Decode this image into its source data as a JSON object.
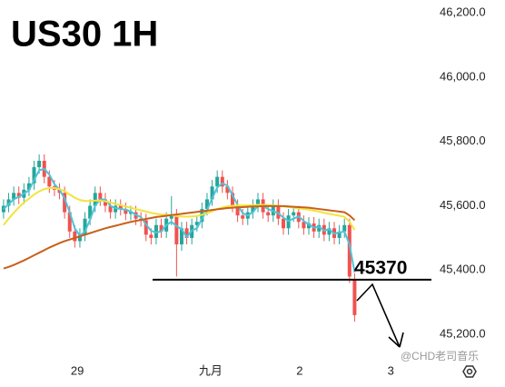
{
  "chart_data": {
    "type": "candlestick",
    "title": "US30 1H",
    "x": [
      0,
      1,
      2,
      3,
      4,
      5,
      6,
      7,
      8,
      9,
      10,
      11,
      12,
      13,
      14,
      15,
      16,
      17,
      18,
      19,
      20,
      21,
      22,
      23,
      24,
      25,
      26,
      27,
      28,
      29,
      30,
      31,
      32,
      33,
      34,
      35,
      36,
      37,
      38,
      39,
      40,
      41,
      42,
      43,
      44,
      45,
      46,
      47,
      48,
      49,
      50,
      51,
      52,
      53,
      54,
      55,
      56,
      57,
      58,
      59,
      60,
      61,
      62,
      63,
      64,
      65,
      66,
      67,
      68,
      69
    ],
    "open": [
      45580,
      45600,
      45620,
      45640,
      45625,
      45650,
      45670,
      45720,
      45740,
      45690,
      45660,
      45650,
      45640,
      45580,
      45520,
      45490,
      45510,
      45560,
      45600,
      45640,
      45620,
      45600,
      45580,
      45600,
      45590,
      45575,
      45580,
      45560,
      45555,
      45510,
      45500,
      45540,
      45520,
      45560,
      45570,
      45480,
      45530,
      45500,
      45540,
      45550,
      45590,
      45620,
      45660,
      45690,
      45660,
      45640,
      45600,
      45570,
      45560,
      45580,
      45600,
      45620,
      45580,
      45570,
      45600,
      45560,
      45530,
      45570,
      45580,
      45550,
      45530,
      45545,
      45520,
      45540,
      45510,
      45530,
      45500,
      45520,
      45540,
      45370
    ],
    "high": [
      45620,
      45640,
      45660,
      45660,
      45670,
      45690,
      45740,
      45760,
      45760,
      45710,
      45680,
      45670,
      45660,
      45600,
      45540,
      45530,
      45580,
      45620,
      45660,
      45660,
      45640,
      45620,
      45620,
      45620,
      45610,
      45600,
      45600,
      45580,
      45575,
      45530,
      45560,
      45560,
      45580,
      45630,
      45590,
      45550,
      45550,
      45560,
      45570,
      45610,
      45640,
      45680,
      45710,
      45710,
      45680,
      45660,
      45620,
      45590,
      45600,
      45620,
      45640,
      45640,
      45600,
      45620,
      45620,
      45580,
      45590,
      45600,
      45600,
      45570,
      45565,
      45565,
      45560,
      45560,
      45550,
      45550,
      45540,
      45560,
      45560,
      45390
    ],
    "low": [
      45560,
      45580,
      45600,
      45605,
      45605,
      45630,
      45650,
      45700,
      45670,
      45640,
      45630,
      45620,
      45560,
      45500,
      45470,
      45470,
      45490,
      45540,
      45580,
      45600,
      45580,
      45560,
      45560,
      45570,
      45555,
      45555,
      45540,
      45535,
      45490,
      45480,
      45480,
      45500,
      45500,
      45540,
      45380,
      45460,
      45480,
      45480,
      45520,
      45530,
      45570,
      45600,
      45640,
      45640,
      45620,
      45580,
      45550,
      45540,
      45540,
      45560,
      45580,
      45560,
      45550,
      45550,
      45540,
      45510,
      45510,
      45550,
      45530,
      45510,
      45510,
      45500,
      45500,
      45490,
      45490,
      45480,
      45480,
      45500,
      45360,
      45240
    ],
    "close": [
      45600,
      45620,
      45640,
      45625,
      45650,
      45670,
      45720,
      45740,
      45690,
      45660,
      45650,
      45640,
      45580,
      45520,
      45490,
      45510,
      45560,
      45600,
      45640,
      45620,
      45600,
      45580,
      45600,
      45590,
      45575,
      45580,
      45560,
      45555,
      45510,
      45500,
      45540,
      45520,
      45560,
      45570,
      45480,
      45530,
      45500,
      45540,
      45550,
      45590,
      45620,
      45660,
      45690,
      45660,
      45640,
      45600,
      45570,
      45560,
      45580,
      45600,
      45620,
      45580,
      45570,
      45600,
      45560,
      45530,
      45570,
      45580,
      45550,
      45530,
      45545,
      45520,
      45540,
      45510,
      45530,
      45500,
      45520,
      45540,
      45380,
      45260
    ],
    "up_color": "#26a69a",
    "down_color": "#ef5350",
    "lines": [
      {
        "color": "#4fc3d9",
        "values": [
          45590,
          45605,
          45620,
          45628,
          45638,
          45648,
          45680,
          45710,
          45715,
          45697,
          45667,
          45650,
          45623,
          45580,
          45530,
          45507,
          45520,
          45557,
          45600,
          45620,
          45620,
          45600,
          45593,
          45590,
          45588,
          45582,
          45572,
          45565,
          45542,
          45522,
          45517,
          45520,
          45540,
          45550,
          45537,
          45527,
          45503,
          45523,
          45530,
          45560,
          45587,
          45623,
          45657,
          45670,
          45663,
          45633,
          45603,
          45577,
          45570,
          45580,
          45600,
          45600,
          45590,
          45583,
          45577,
          45563,
          45553,
          45560,
          45567,
          45553,
          45542,
          45532,
          45535,
          45523,
          45527,
          45513,
          45517,
          45520,
          45480,
          45393
        ]
      },
      {
        "color": "#f2e33c",
        "values": [
          45540,
          45560,
          45578,
          45595,
          45610,
          45622,
          45635,
          45645,
          45652,
          45655,
          45655,
          45652,
          45645,
          45635,
          45625,
          45618,
          45615,
          45615,
          45616,
          45616,
          45614,
          45610,
          45606,
          45602,
          45598,
          45594,
          45590,
          45586,
          45582,
          45578,
          45575,
          45573,
          45572,
          45571,
          45568,
          45567,
          45566,
          45567,
          45568,
          45572,
          45577,
          45583,
          45590,
          45595,
          45598,
          45600,
          45601,
          45601,
          45601,
          45602,
          45603,
          45603,
          45602,
          45601,
          45600,
          45598,
          45596,
          45594,
          45592,
          45590,
          45588,
          45585,
          45582,
          45578,
          45575,
          45572,
          45569,
          45566,
          45550,
          45525
        ]
      },
      {
        "color": "#c8601a",
        "values": [
          45405,
          45410,
          45416,
          45423,
          45430,
          45438,
          45446,
          45454,
          45462,
          45470,
          45477,
          45484,
          45490,
          45495,
          45500,
          45505,
          45510,
          45515,
          45520,
          45525,
          45530,
          45534,
          45538,
          45542,
          45546,
          45550,
          45553,
          45556,
          45559,
          45562,
          45565,
          45567,
          45569,
          45571,
          45573,
          45575,
          45577,
          45579,
          45581,
          45583,
          45585,
          45587,
          45589,
          45591,
          45593,
          45594,
          45595,
          45596,
          45597,
          45598,
          45598,
          45599,
          45599,
          45599,
          45599,
          45599,
          45598,
          45597,
          45596,
          45595,
          45594,
          45592,
          45590,
          45588,
          45586,
          45584,
          45582,
          45580,
          45570,
          45555
        ]
      }
    ],
    "xlim": [
      -0.7,
      84.1
    ],
    "xticks": [
      {
        "value": 14.5,
        "label": "29"
      },
      {
        "value": 40.7,
        "label": "九月"
      },
      {
        "value": 58.2,
        "label": "2"
      },
      {
        "value": 76.1,
        "label": "3"
      }
    ],
    "ylim": [
      45124,
      46240
    ],
    "yticks": [
      {
        "value": 45200,
        "label": "45,200.0"
      },
      {
        "value": 45400,
        "label": "45,400.0"
      },
      {
        "value": 45600,
        "label": "45,600.0"
      },
      {
        "value": 45800,
        "label": "45,800.0"
      },
      {
        "value": 46000,
        "label": "46,000.0"
      },
      {
        "value": 46200,
        "label": "46,200.0"
      }
    ],
    "grid": false,
    "level": 45370,
    "watermark": "@CHD老司音乐"
  }
}
